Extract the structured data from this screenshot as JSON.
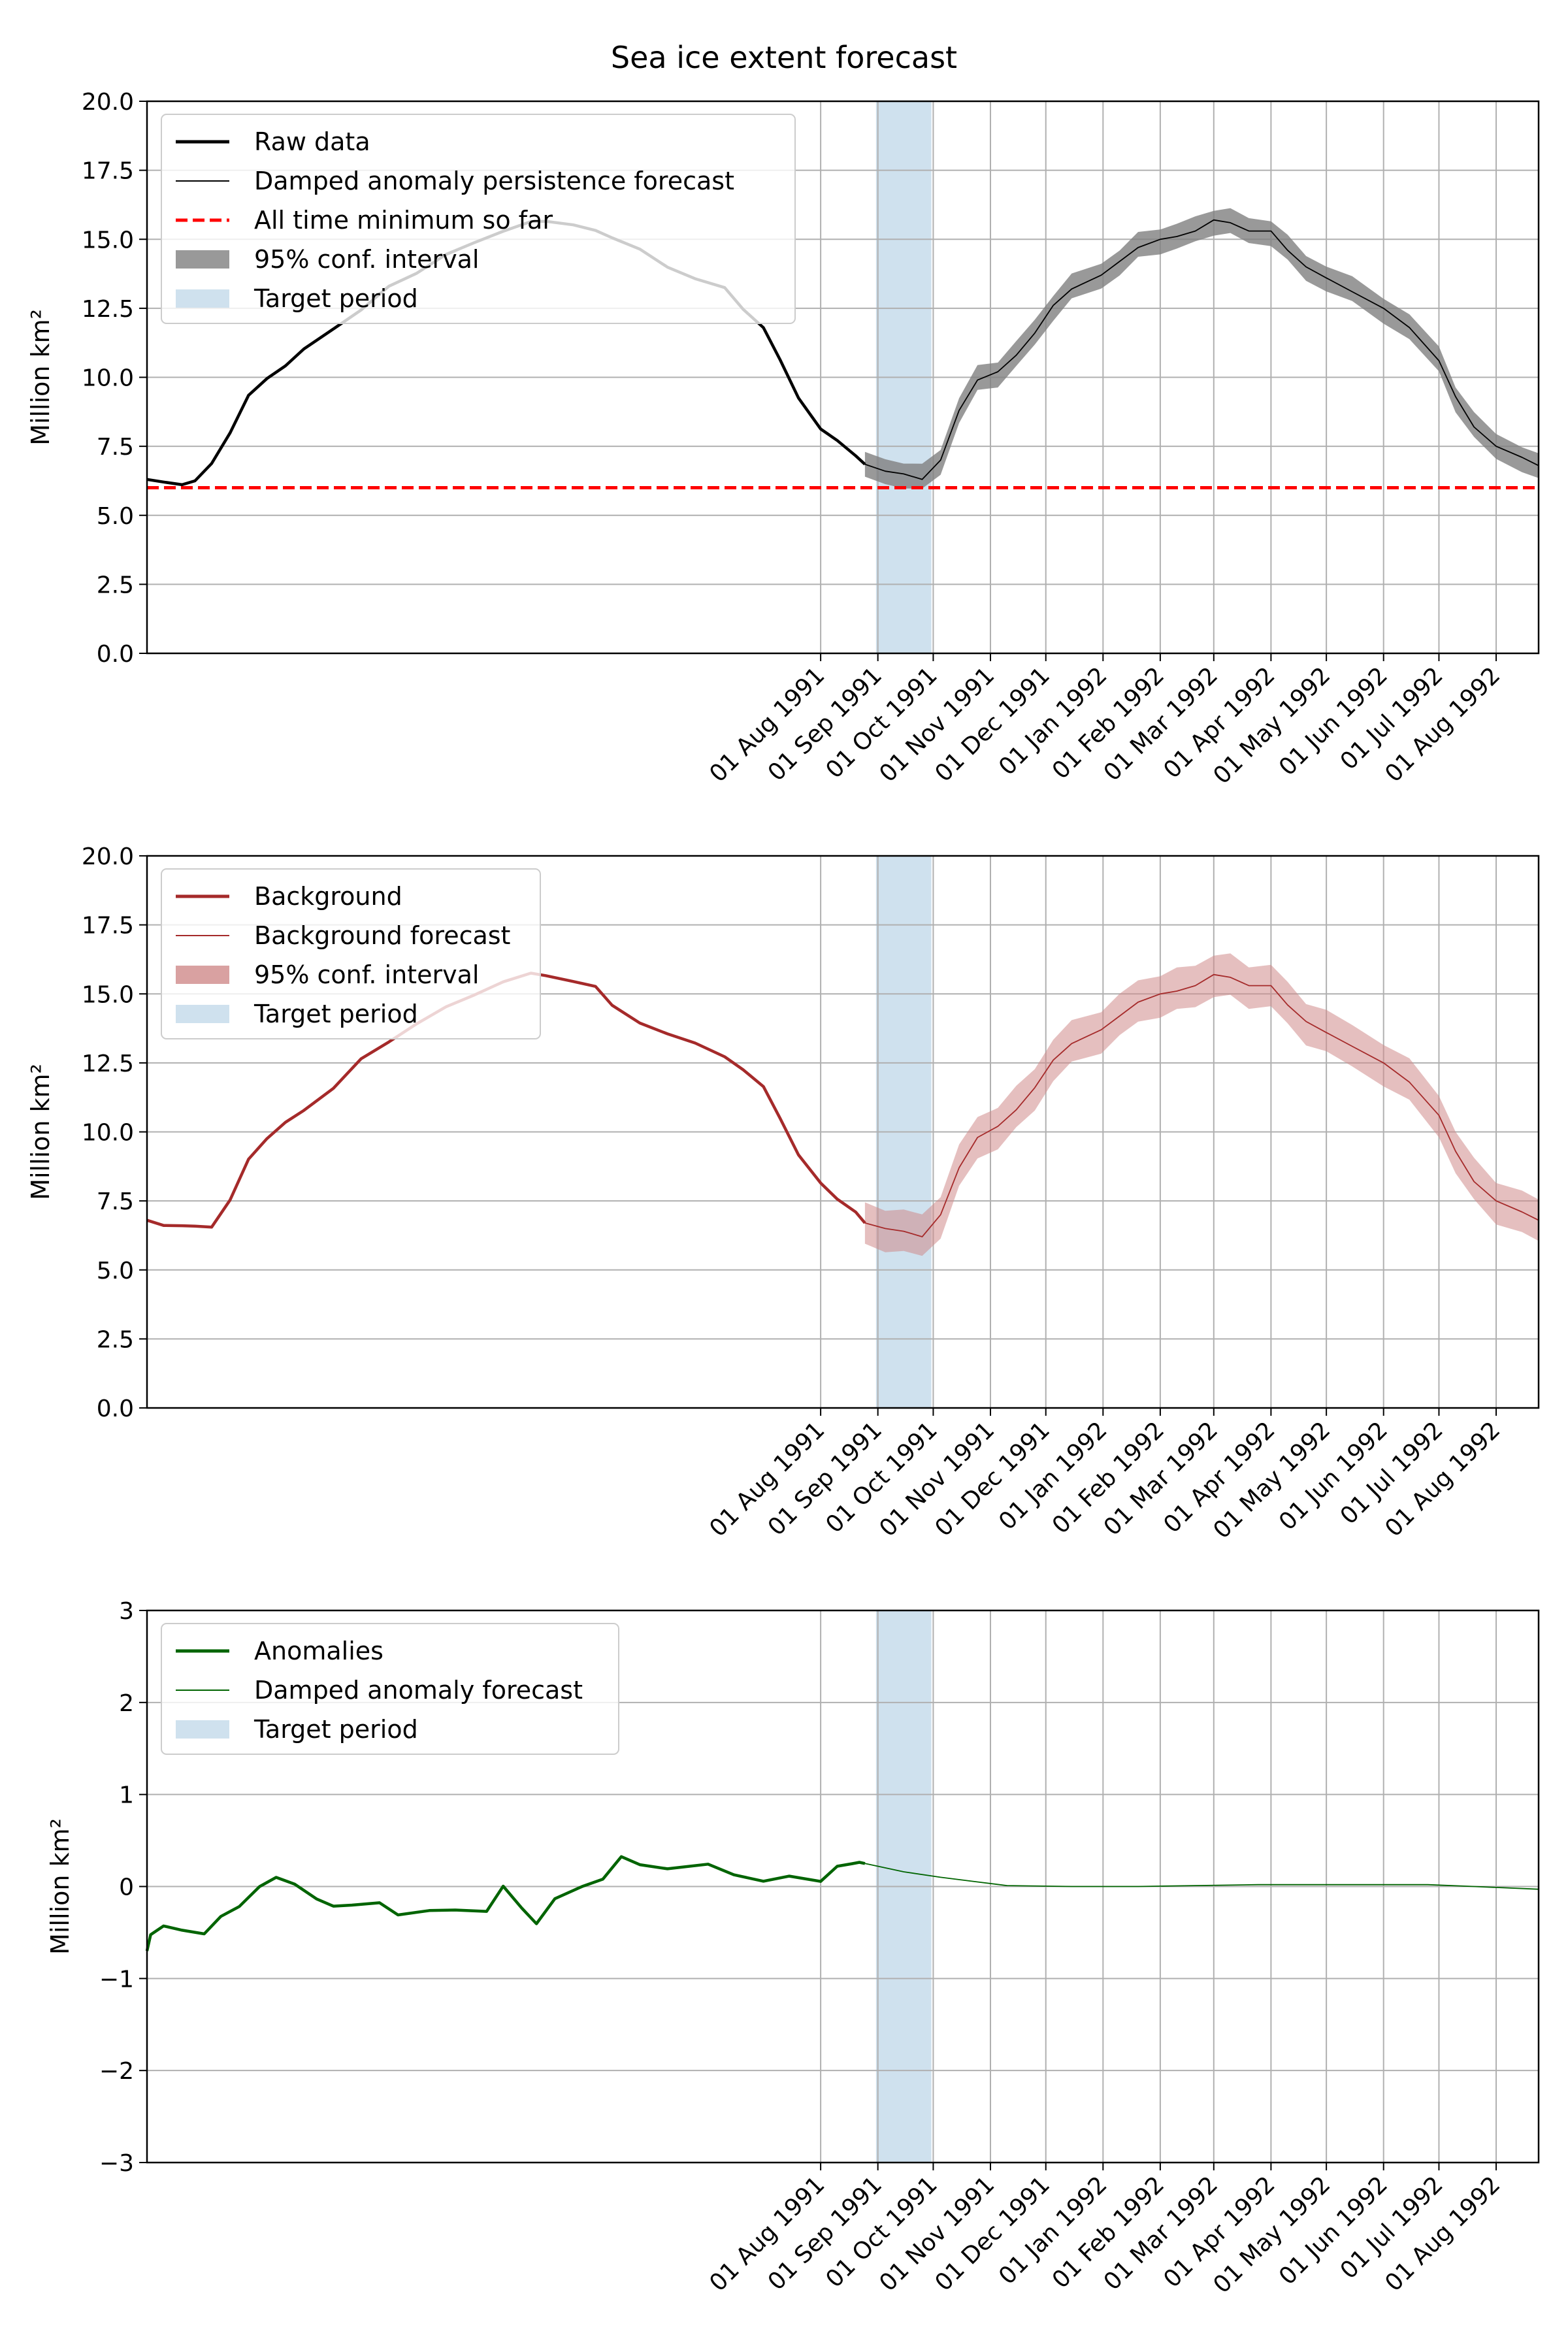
{
  "figure": {
    "title": "Sea ice extent forecast"
  },
  "colors": {
    "raw": "#000000",
    "conf_gray": "#808080",
    "minimum_line": "#ff0000",
    "target": "#a8c8e0",
    "background": "#a52a2a",
    "conf_red": "#d08a8a",
    "anomalies": "#006400",
    "grid": "#b0b0b0"
  },
  "chart_data": [
    {
      "type": "line",
      "title": "",
      "ylabel": "Million km²",
      "xlabel": "",
      "ylim": [
        0,
        20
      ],
      "xlim": [
        "1990-08-01",
        "1992-08-24"
      ],
      "yticks": [
        "0.0",
        "2.5",
        "5.0",
        "7.5",
        "10.0",
        "12.5",
        "15.0",
        "17.5",
        "20.0"
      ],
      "xticks": [
        "01 Aug 1991",
        "01 Sep 1991",
        "01 Oct 1991",
        "01 Nov 1991",
        "01 Dec 1991",
        "01 Jan 1992",
        "01 Feb 1992",
        "01 Mar 1992",
        "01 Apr 1992",
        "01 May 1992",
        "01 Jun 1992",
        "01 Jul 1992",
        "01 Aug 1992"
      ],
      "grid": true,
      "legend_position": "top-left",
      "target_period": [
        "1991-08-31",
        "1991-09-30"
      ],
      "minimum_line": 6.0,
      "legend": [
        {
          "label": "Raw data",
          "kind": "line-thick",
          "color": "#000000"
        },
        {
          "label": "Damped anomaly persistence forecast",
          "kind": "line-thin",
          "color": "#000000"
        },
        {
          "label": "All time minimum so far",
          "kind": "dashed",
          "color": "#ff0000"
        },
        {
          "label": "95% conf. interval",
          "kind": "patch",
          "color": "#808080"
        },
        {
          "label": "Target period",
          "kind": "patch",
          "color": "#a8c8e0"
        }
      ],
      "series": [
        {
          "role": "observed",
          "color": "#000000",
          "points": [
            [
              "1990-08-01",
              6.3
            ],
            [
              "1990-08-10",
              6.2
            ],
            [
              "1990-08-20",
              6.15
            ],
            [
              "1990-08-27",
              6.2
            ],
            [
              "1990-09-05",
              6.9
            ],
            [
              "1990-09-15",
              8.0
            ],
            [
              "1990-09-25",
              9.3
            ],
            [
              "1990-10-05",
              10.0
            ],
            [
              "1990-10-15",
              10.4
            ],
            [
              "1990-10-25",
              11.0
            ],
            [
              "1990-11-10",
              11.8
            ],
            [
              "1990-11-25",
              12.4
            ],
            [
              "1990-12-10",
              13.3
            ],
            [
              "1990-12-25",
              13.8
            ],
            [
              "1991-01-10",
              14.4
            ],
            [
              "1991-01-25",
              14.9
            ],
            [
              "1991-02-10",
              15.3
            ],
            [
              "1991-02-25",
              15.6
            ],
            [
              "1991-03-05",
              15.7
            ],
            [
              "1991-03-20",
              15.5
            ],
            [
              "1991-04-01",
              15.3
            ],
            [
              "1991-04-10",
              15.1
            ],
            [
              "1991-04-25",
              14.6
            ],
            [
              "1991-05-10",
              14.0
            ],
            [
              "1991-05-25",
              13.6
            ],
            [
              "1991-06-10",
              13.2
            ],
            [
              "1991-06-20",
              12.5
            ],
            [
              "1991-07-01",
              11.8
            ],
            [
              "1991-07-10",
              10.6
            ],
            [
              "1991-07-20",
              9.3
            ],
            [
              "1991-08-01",
              8.1
            ],
            [
              "1991-08-10",
              7.7
            ],
            [
              "1991-08-20",
              7.2
            ],
            [
              "1991-08-25",
              6.85
            ]
          ]
        },
        {
          "role": "forecast",
          "color": "#000000",
          "ci_half_width": 0.45,
          "points": [
            [
              "1991-08-25",
              6.85
            ],
            [
              "1991-09-05",
              6.6
            ],
            [
              "1991-09-15",
              6.5
            ],
            [
              "1991-09-25",
              6.3
            ],
            [
              "1991-10-05",
              7.0
            ],
            [
              "1991-10-15",
              8.8
            ],
            [
              "1991-10-25",
              9.9
            ],
            [
              "1991-11-05",
              10.2
            ],
            [
              "1991-11-15",
              10.8
            ],
            [
              "1991-11-25",
              11.6
            ],
            [
              "1991-12-05",
              12.6
            ],
            [
              "1991-12-15",
              13.2
            ],
            [
              "1991-12-31",
              13.7
            ],
            [
              "1992-01-10",
              14.2
            ],
            [
              "1992-01-20",
              14.7
            ],
            [
              "1992-02-01",
              15.0
            ],
            [
              "1992-02-10",
              15.1
            ],
            [
              "1992-02-20",
              15.3
            ],
            [
              "1992-03-01",
              15.7
            ],
            [
              "1992-03-10",
              15.6
            ],
            [
              "1992-03-20",
              15.3
            ],
            [
              "1992-04-01",
              15.3
            ],
            [
              "1992-04-10",
              14.6
            ],
            [
              "1992-04-20",
              14.0
            ],
            [
              "1992-05-01",
              13.6
            ],
            [
              "1992-05-15",
              13.1
            ],
            [
              "1992-06-01",
              12.5
            ],
            [
              "1992-06-15",
              11.8
            ],
            [
              "1992-07-01",
              10.6
            ],
            [
              "1992-07-10",
              9.3
            ],
            [
              "1992-07-20",
              8.2
            ],
            [
              "1992-08-01",
              7.5
            ],
            [
              "1992-08-15",
              7.1
            ],
            [
              "1992-08-24",
              6.8
            ]
          ]
        }
      ]
    },
    {
      "type": "line",
      "title": "",
      "ylabel": "Million km²",
      "xlabel": "",
      "ylim": [
        0,
        20
      ],
      "xlim": [
        "1990-08-01",
        "1992-08-24"
      ],
      "yticks": [
        "0.0",
        "2.5",
        "5.0",
        "7.5",
        "10.0",
        "12.5",
        "15.0",
        "17.5",
        "20.0"
      ],
      "xticks": [
        "01 Aug 1991",
        "01 Sep 1991",
        "01 Oct 1991",
        "01 Nov 1991",
        "01 Dec 1991",
        "01 Jan 1992",
        "01 Feb 1992",
        "01 Mar 1992",
        "01 Apr 1992",
        "01 May 1992",
        "01 Jun 1992",
        "01 Jul 1992",
        "01 Aug 1992"
      ],
      "grid": true,
      "legend_position": "top-left",
      "target_period": [
        "1991-08-31",
        "1991-09-30"
      ],
      "legend": [
        {
          "label": "Background",
          "kind": "line-thick",
          "color": "#a52a2a"
        },
        {
          "label": "Background forecast",
          "kind": "line-thin",
          "color": "#a52a2a"
        },
        {
          "label": "95% conf. interval",
          "kind": "patch",
          "color": "#d08a8a"
        },
        {
          "label": "Target period",
          "kind": "patch",
          "color": "#a8c8e0"
        }
      ],
      "series": [
        {
          "role": "observed",
          "color": "#a52a2a",
          "points": [
            [
              "1990-08-01",
              6.8
            ],
            [
              "1990-08-10",
              6.65
            ],
            [
              "1990-08-20",
              6.6
            ],
            [
              "1990-08-27",
              6.55
            ],
            [
              "1990-09-05",
              6.6
            ],
            [
              "1990-09-15",
              7.5
            ],
            [
              "1990-09-25",
              9.0
            ],
            [
              "1990-10-05",
              9.8
            ],
            [
              "1990-10-15",
              10.3
            ],
            [
              "1990-10-25",
              10.8
            ],
            [
              "1990-11-10",
              11.6
            ],
            [
              "1990-11-25",
              12.6
            ],
            [
              "1990-12-10",
              13.3
            ],
            [
              "1990-12-25",
              13.9
            ],
            [
              "1991-01-10",
              14.5
            ],
            [
              "1991-01-25",
              15.0
            ],
            [
              "1991-02-10",
              15.4
            ],
            [
              "1991-02-25",
              15.75
            ],
            [
              "1991-03-05",
              15.7
            ],
            [
              "1991-03-20",
              15.4
            ],
            [
              "1991-04-01",
              15.3
            ],
            [
              "1991-04-10",
              14.6
            ],
            [
              "1991-04-25",
              13.9
            ],
            [
              "1991-05-10",
              13.6
            ],
            [
              "1991-05-25",
              13.2
            ],
            [
              "1991-06-10",
              12.7
            ],
            [
              "1991-06-20",
              12.3
            ],
            [
              "1991-07-01",
              11.6
            ],
            [
              "1991-07-10",
              10.5
            ],
            [
              "1991-07-20",
              9.2
            ],
            [
              "1991-08-01",
              8.1
            ],
            [
              "1991-08-10",
              7.6
            ],
            [
              "1991-08-20",
              7.1
            ],
            [
              "1991-08-25",
              6.7
            ]
          ]
        },
        {
          "role": "forecast",
          "color": "#a52a2a",
          "ci_half_width": 0.75,
          "points": [
            [
              "1991-08-25",
              6.7
            ],
            [
              "1991-09-05",
              6.5
            ],
            [
              "1991-09-15",
              6.4
            ],
            [
              "1991-09-25",
              6.2
            ],
            [
              "1991-10-05",
              7.0
            ],
            [
              "1991-10-15",
              8.7
            ],
            [
              "1991-10-25",
              9.8
            ],
            [
              "1991-11-05",
              10.2
            ],
            [
              "1991-11-15",
              10.8
            ],
            [
              "1991-11-25",
              11.6
            ],
            [
              "1991-12-05",
              12.6
            ],
            [
              "1991-12-15",
              13.2
            ],
            [
              "1991-12-31",
              13.7
            ],
            [
              "1992-01-10",
              14.2
            ],
            [
              "1992-01-20",
              14.7
            ],
            [
              "1992-02-01",
              15.0
            ],
            [
              "1992-02-10",
              15.1
            ],
            [
              "1992-02-20",
              15.3
            ],
            [
              "1992-03-01",
              15.7
            ],
            [
              "1992-03-10",
              15.6
            ],
            [
              "1992-03-20",
              15.3
            ],
            [
              "1992-04-01",
              15.3
            ],
            [
              "1992-04-10",
              14.6
            ],
            [
              "1992-04-20",
              14.0
            ],
            [
              "1992-05-01",
              13.6
            ],
            [
              "1992-05-15",
              13.1
            ],
            [
              "1992-06-01",
              12.5
            ],
            [
              "1992-06-15",
              11.8
            ],
            [
              "1992-07-01",
              10.6
            ],
            [
              "1992-07-10",
              9.3
            ],
            [
              "1992-07-20",
              8.2
            ],
            [
              "1992-08-01",
              7.5
            ],
            [
              "1992-08-15",
              7.1
            ],
            [
              "1992-08-24",
              6.8
            ]
          ]
        }
      ]
    },
    {
      "type": "line",
      "title": "",
      "ylabel": "Million km²",
      "xlabel": "",
      "ylim": [
        -3,
        3
      ],
      "xlim": [
        "1990-08-01",
        "1992-08-24"
      ],
      "yticks": [
        "−3",
        "−2",
        "−1",
        "0",
        "1",
        "2",
        "3"
      ],
      "xticks": [
        "01 Aug 1991",
        "01 Sep 1991",
        "01 Oct 1991",
        "01 Nov 1991",
        "01 Dec 1991",
        "01 Jan 1992",
        "01 Feb 1992",
        "01 Mar 1992",
        "01 Apr 1992",
        "01 May 1992",
        "01 Jun 1992",
        "01 Jul 1992",
        "01 Aug 1992"
      ],
      "grid": true,
      "legend_position": "top-left",
      "target_period": [
        "1991-08-31",
        "1991-09-30"
      ],
      "legend": [
        {
          "label": "Anomalies",
          "kind": "line-thick",
          "color": "#006400"
        },
        {
          "label": "Damped anomaly forecast",
          "kind": "line-thin",
          "color": "#006400"
        },
        {
          "label": "Target period",
          "kind": "patch",
          "color": "#a8c8e0"
        }
      ],
      "series": [
        {
          "role": "observed",
          "color": "#006400",
          "points": [
            [
              "1990-08-01",
              -0.7
            ],
            [
              "1990-08-03",
              -0.5
            ],
            [
              "1990-08-10",
              -0.45
            ],
            [
              "1990-08-20",
              -0.47
            ],
            [
              "1990-09-01",
              -0.5
            ],
            [
              "1990-09-10",
              -0.35
            ],
            [
              "1990-09-20",
              -0.2
            ],
            [
              "1990-10-01",
              0.0
            ],
            [
              "1990-10-10",
              0.08
            ],
            [
              "1990-10-20",
              0.05
            ],
            [
              "1990-11-01",
              -0.15
            ],
            [
              "1990-11-10",
              -0.22
            ],
            [
              "1990-11-20",
              -0.18
            ],
            [
              "1990-12-05",
              -0.2
            ],
            [
              "1990-12-15",
              -0.3
            ],
            [
              "1991-01-01",
              -0.25
            ],
            [
              "1991-01-15",
              -0.28
            ],
            [
              "1991-02-01",
              -0.25
            ],
            [
              "1991-02-10",
              0.0
            ],
            [
              "1991-02-20",
              -0.25
            ],
            [
              "1991-02-28",
              -0.38
            ],
            [
              "1991-03-10",
              -0.15
            ],
            [
              "1991-03-25",
              0.0
            ],
            [
              "1991-04-05",
              0.1
            ],
            [
              "1991-04-15",
              0.3
            ],
            [
              "1991-04-25",
              0.25
            ],
            [
              "1991-05-10",
              0.2
            ],
            [
              "1991-06-01",
              0.22
            ],
            [
              "1991-06-15",
              0.15
            ],
            [
              "1991-07-01",
              0.05
            ],
            [
              "1991-07-15",
              0.1
            ],
            [
              "1991-08-01",
              0.08
            ],
            [
              "1991-08-10",
              0.2
            ],
            [
              "1991-08-18",
              0.25
            ],
            [
              "1991-08-22",
              0.28
            ],
            [
              "1991-08-25",
              0.25
            ]
          ]
        },
        {
          "role": "forecast",
          "color": "#006400",
          "points": [
            [
              "1991-08-25",
              0.25
            ],
            [
              "1991-09-15",
              0.16
            ],
            [
              "1991-10-05",
              0.1
            ],
            [
              "1991-10-25",
              0.05
            ],
            [
              "1991-11-10",
              0.01
            ],
            [
              "1991-12-15",
              0.0
            ],
            [
              "1992-01-20",
              0.0
            ],
            [
              "1992-02-20",
              0.01
            ],
            [
              "1992-03-25",
              0.02
            ],
            [
              "1992-04-25",
              0.02
            ],
            [
              "1992-05-25",
              0.02
            ],
            [
              "1992-06-25",
              0.02
            ],
            [
              "1992-07-20",
              0.0
            ],
            [
              "1992-08-24",
              -0.03
            ]
          ]
        }
      ]
    }
  ]
}
